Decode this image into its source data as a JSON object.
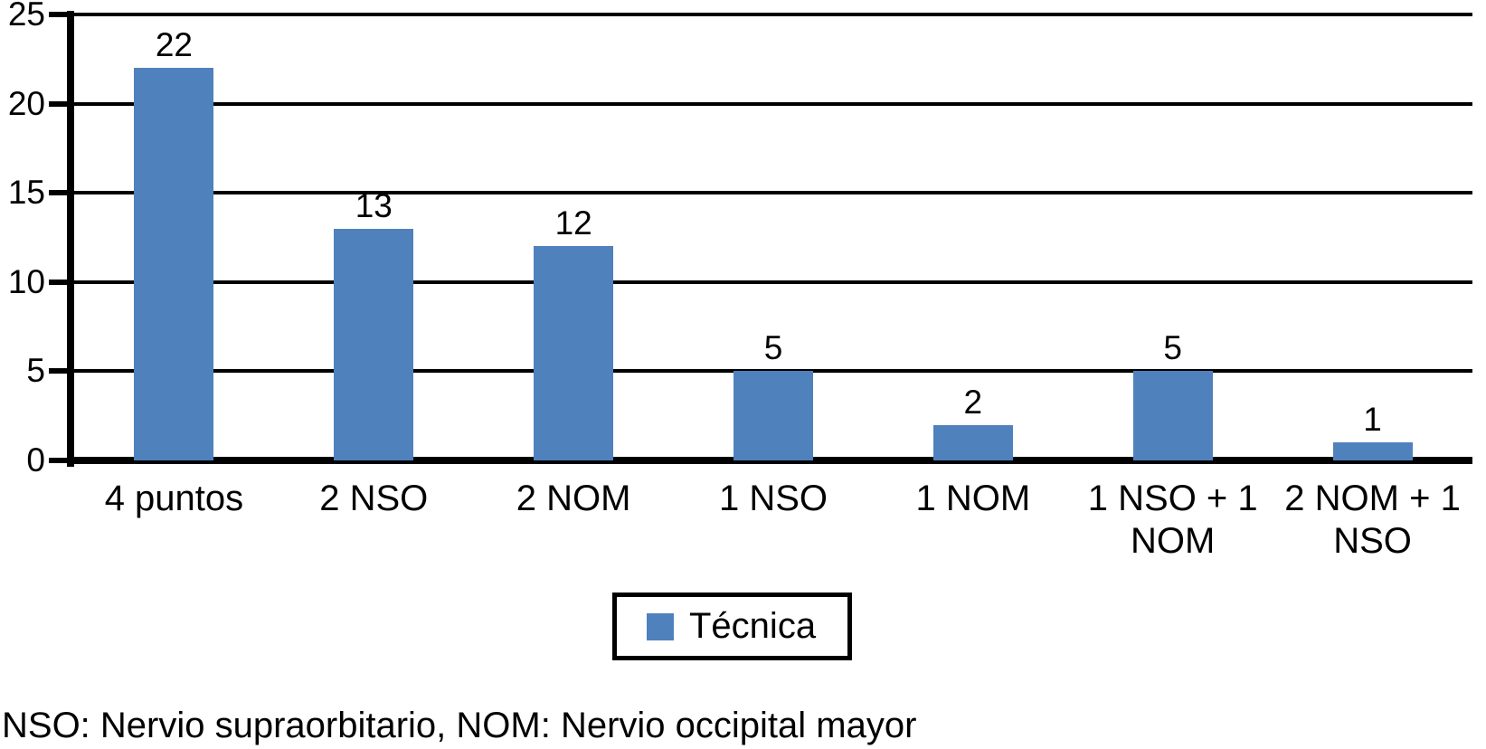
{
  "accent_color": "#4F81BD",
  "line_color": "#000000",
  "background_color": "#ffffff",
  "legend": {
    "label": "Técnica",
    "swatch_icon": "blue-square-swatch"
  },
  "footnote": "NSO: Nervio supraorbitario, NOM: Nervio occipital mayor",
  "chart_data": {
    "type": "bar",
    "title": "",
    "xlabel": "",
    "ylabel": "",
    "categories": [
      "4 puntos",
      "2 NSO",
      "2 NOM",
      "1 NSO",
      "1 NOM",
      "1 NSO + 1 NOM",
      "2 NOM + 1 NSO"
    ],
    "series": [
      {
        "name": "Técnica",
        "values": [
          22,
          13,
          12,
          5,
          2,
          5,
          1
        ]
      }
    ],
    "data_labels": [
      "22",
      "13",
      "12",
      "5",
      "2",
      "5",
      "1"
    ],
    "ylim": [
      0,
      25
    ],
    "yticks": [
      0,
      5,
      10,
      15,
      20,
      25
    ],
    "grid": true,
    "gridlines_behind_bars": true,
    "bar_color": "#4F81BD",
    "legend_position": "bottom-center",
    "legend_entries": [
      "Técnica"
    ],
    "footnote": "NSO: Nervio supraorbitario, NOM: Nervio occipital mayor"
  }
}
